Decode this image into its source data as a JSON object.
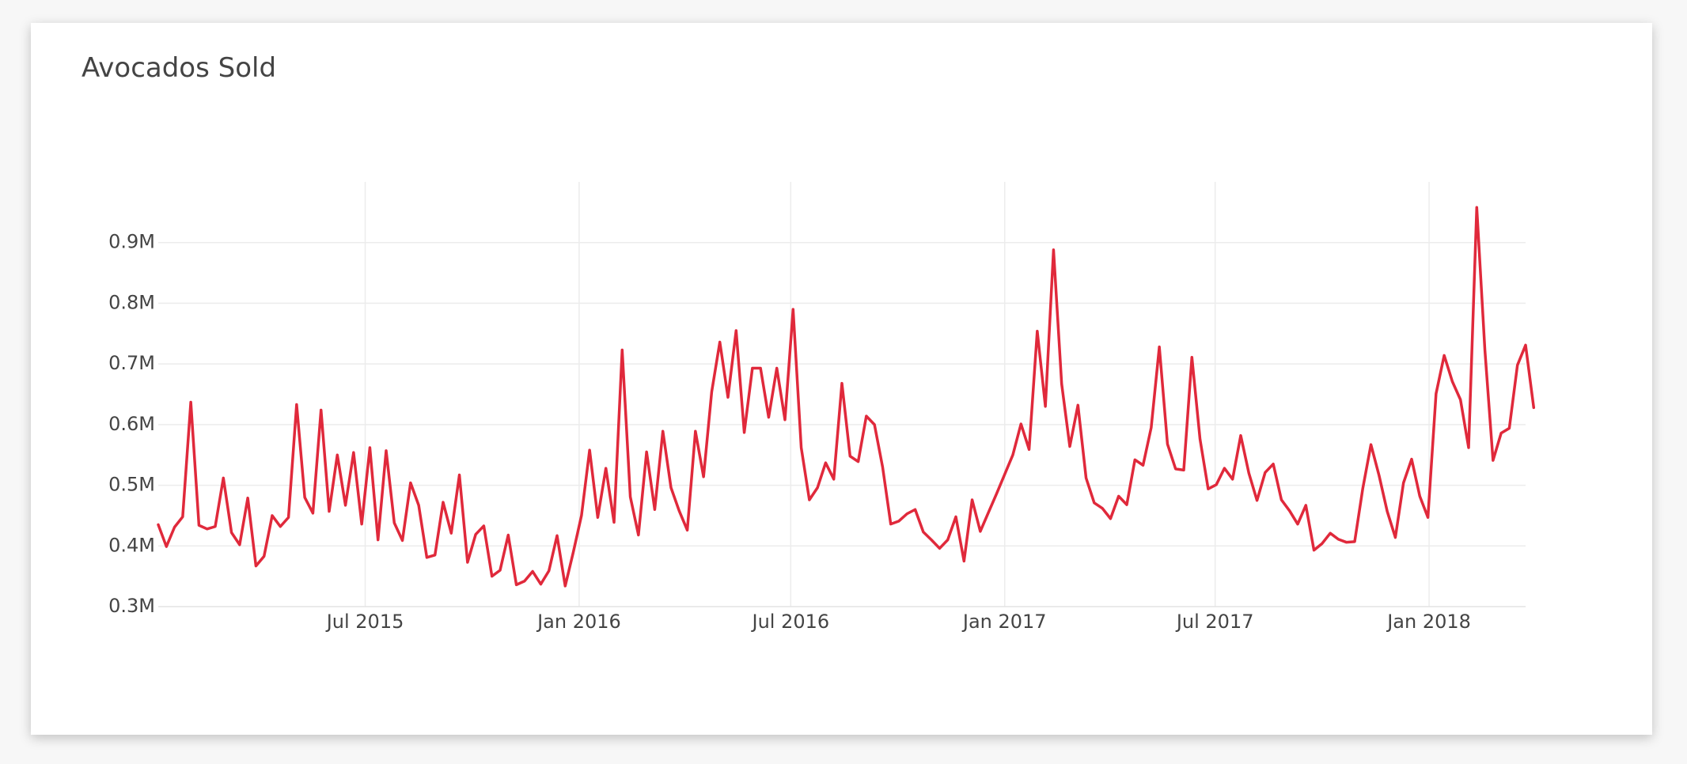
{
  "colors": {
    "line": "#e0293b",
    "grid": "#ececec",
    "background": "#ffffff",
    "text": "#444444"
  },
  "chart_data": {
    "type": "line",
    "title": "Avocados Sold",
    "xlabel": "",
    "ylabel": "",
    "grid": true,
    "legend": "none",
    "ylim": [
      0.3,
      1.0
    ],
    "y_unit": "M",
    "y_ticks": [
      {
        "value": 0.3,
        "label": "0.3M"
      },
      {
        "value": 0.4,
        "label": "0.4M"
      },
      {
        "value": 0.5,
        "label": "0.5M"
      },
      {
        "value": 0.6,
        "label": "0.6M"
      },
      {
        "value": 0.7,
        "label": "0.7M"
      },
      {
        "value": 0.8,
        "label": "0.8M"
      },
      {
        "value": 0.9,
        "label": "0.9M"
      }
    ],
    "xlim": [
      "2015-01-04",
      "2018-03-25"
    ],
    "x_ticks": [
      {
        "value": "2015-07-01",
        "label": "Jul 2015"
      },
      {
        "value": "2016-01-01",
        "label": "Jan 2016"
      },
      {
        "value": "2016-07-01",
        "label": "Jul 2016"
      },
      {
        "value": "2017-01-01",
        "label": "Jan 2017"
      },
      {
        "value": "2017-07-01",
        "label": "Jul 2017"
      },
      {
        "value": "2018-01-01",
        "label": "Jan 2018"
      }
    ],
    "series": [
      {
        "start": "2015-01-04",
        "interval_days": 7,
        "values": [
          0.435,
          0.399,
          0.431,
          0.448,
          0.637,
          0.434,
          0.428,
          0.432,
          0.512,
          0.422,
          0.402,
          0.479,
          0.367,
          0.383,
          0.45,
          0.432,
          0.447,
          0.633,
          0.48,
          0.454,
          0.624,
          0.457,
          0.55,
          0.467,
          0.554,
          0.436,
          0.562,
          0.41,
          0.557,
          0.438,
          0.409,
          0.504,
          0.467,
          0.381,
          0.385,
          0.472,
          0.421,
          0.517,
          0.373,
          0.419,
          0.433,
          0.35,
          0.36,
          0.418,
          0.336,
          0.342,
          0.358,
          0.337,
          0.359,
          0.417,
          0.334,
          0.39,
          0.45,
          0.558,
          0.447,
          0.528,
          0.439,
          0.723,
          0.481,
          0.418,
          0.555,
          0.46,
          0.589,
          0.496,
          0.458,
          0.426,
          0.589,
          0.514,
          0.654,
          0.736,
          0.645,
          0.755,
          0.587,
          0.693,
          0.693,
          0.612,
          0.693,
          0.608,
          0.79,
          0.562,
          0.476,
          0.496,
          0.537,
          0.51,
          0.668,
          0.548,
          0.539,
          0.614,
          0.6,
          0.53,
          0.436,
          0.441,
          0.453,
          0.46,
          0.423,
          0.41,
          0.396,
          0.41,
          0.448,
          0.375,
          0.476,
          0.424,
          0.455,
          0.486,
          0.518,
          0.55,
          0.601,
          0.559,
          0.754,
          0.63,
          0.888,
          0.667,
          0.564,
          0.632,
          0.512,
          0.471,
          0.462,
          0.445,
          0.482,
          0.468,
          0.542,
          0.533,
          0.595,
          0.728,
          0.568,
          0.527,
          0.525,
          0.711,
          0.576,
          0.494,
          0.501,
          0.528,
          0.51,
          0.582,
          0.52,
          0.475,
          0.521,
          0.535,
          0.476,
          0.458,
          0.436,
          0.467,
          0.393,
          0.404,
          0.421,
          0.411,
          0.406,
          0.407,
          0.495,
          0.567,
          0.516,
          0.457,
          0.414,
          0.504,
          0.543,
          0.482,
          0.447,
          0.651,
          0.714,
          0.671,
          0.641,
          0.562,
          0.958,
          0.723,
          0.541,
          0.586,
          0.594,
          0.698,
          0.731,
          0.628
        ]
      }
    ]
  }
}
